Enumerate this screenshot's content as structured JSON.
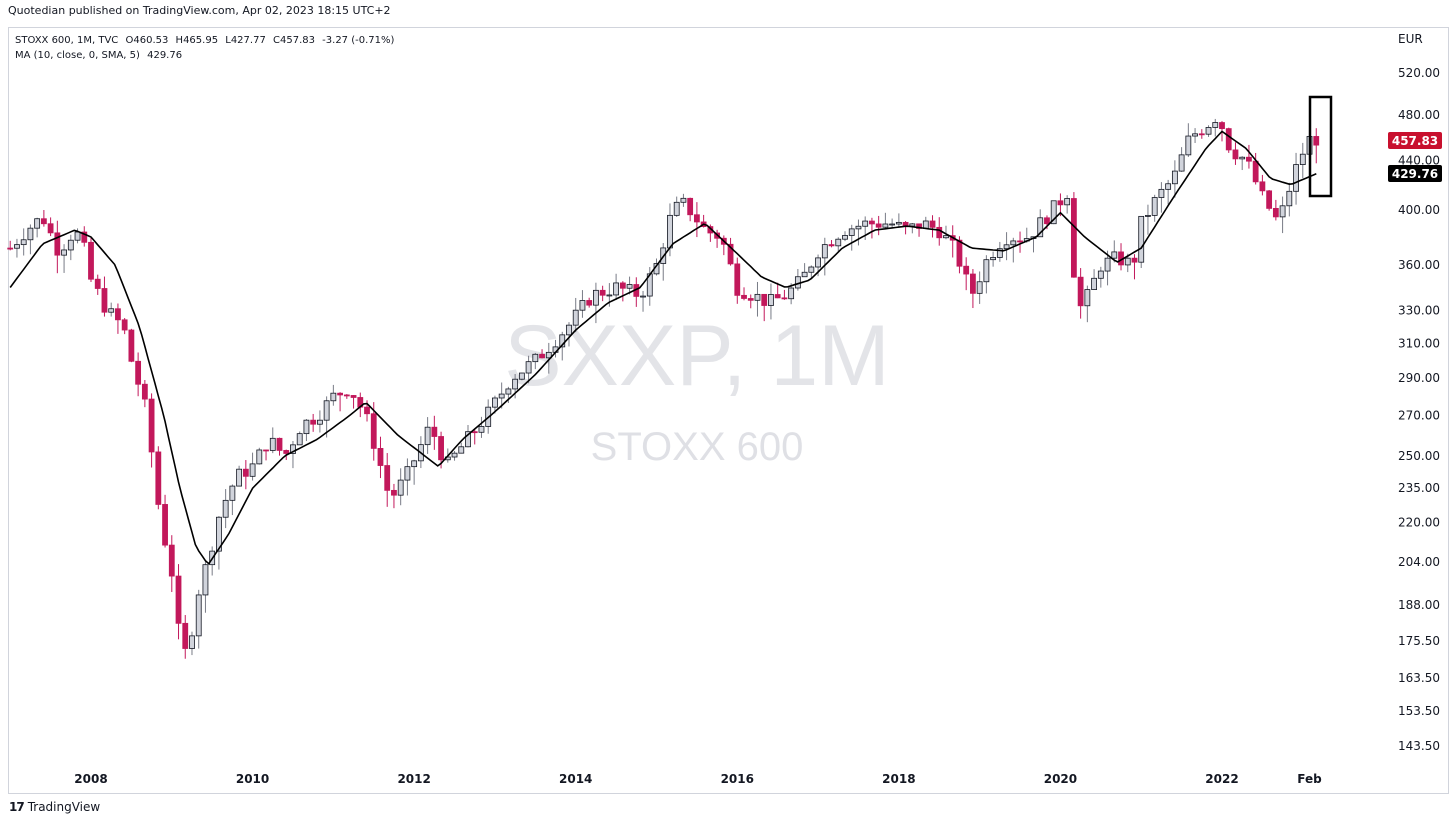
{
  "publisher_line": "Quotedian published on TradingView.com, Apr 02, 2023 18:15 UTC+2",
  "legend": {
    "symbol": "STOXX 600, 1M, TVC",
    "open": "O460.53",
    "high": "H465.95",
    "low": "L427.77",
    "close": "C457.83",
    "change": "-3.27 (-0.71%)",
    "ma_line": "MA (10, close, 0, SMA, 5)",
    "ma_value": "429.76"
  },
  "watermark": {
    "ticker": "SXXP, 1M",
    "name": "STOXX 600"
  },
  "footer": {
    "logo_text": "TradingView"
  },
  "colors": {
    "up_body": "#d1d4dc",
    "down_body": "#c2185b",
    "wick_up": "#787b86",
    "wick_down": "#c2185b",
    "ma_line": "#000000",
    "price_badge": "#c8102e",
    "ma_badge": "#000000"
  },
  "chart_data": {
    "type": "candlestick",
    "timeframe": "1M",
    "currency_label": "EUR",
    "scale": "log",
    "y_ticks": [
      "520.00",
      "480.00",
      "440.00",
      "400.00",
      "360.00",
      "330.00",
      "310.00",
      "290.00",
      "270.00",
      "250.00",
      "235.00",
      "220.00",
      "204.00",
      "188.00",
      "175.50",
      "163.50",
      "153.50",
      "143.50"
    ],
    "x_ticks": [
      {
        "label": "2008",
        "t": 2008.0
      },
      {
        "label": "2010",
        "t": 2010.0
      },
      {
        "label": "2012",
        "t": 2012.0
      },
      {
        "label": "2014",
        "t": 2014.0
      },
      {
        "label": "2016",
        "t": 2016.0
      },
      {
        "label": "2018",
        "t": 2018.0
      },
      {
        "label": "2020",
        "t": 2020.0
      },
      {
        "label": "2022",
        "t": 2022.0
      },
      {
        "label": "Feb",
        "t": 2023.083
      }
    ],
    "last_price": "457.83",
    "ma_last": "429.76",
    "close_anchors": [
      [
        2007.0,
        372
      ],
      [
        2007.2,
        385
      ],
      [
        2007.4,
        395
      ],
      [
        2007.6,
        370
      ],
      [
        2007.8,
        385
      ],
      [
        2007.9,
        375
      ],
      [
        2008.0,
        350
      ],
      [
        2008.2,
        330
      ],
      [
        2008.4,
        320
      ],
      [
        2008.5,
        300
      ],
      [
        2008.6,
        285
      ],
      [
        2008.7,
        270
      ],
      [
        2008.8,
        235
      ],
      [
        2008.9,
        215
      ],
      [
        2009.0,
        200
      ],
      [
        2009.1,
        175
      ],
      [
        2009.2,
        170
      ],
      [
        2009.3,
        190
      ],
      [
        2009.45,
        205
      ],
      [
        2009.6,
        225
      ],
      [
        2009.8,
        240
      ],
      [
        2010.0,
        245
      ],
      [
        2010.2,
        258
      ],
      [
        2010.4,
        250
      ],
      [
        2010.6,
        265
      ],
      [
        2010.8,
        270
      ],
      [
        2011.0,
        280
      ],
      [
        2011.2,
        285
      ],
      [
        2011.4,
        270
      ],
      [
        2011.55,
        250
      ],
      [
        2011.7,
        230
      ],
      [
        2011.9,
        240
      ],
      [
        2012.2,
        265
      ],
      [
        2012.4,
        245
      ],
      [
        2012.6,
        255
      ],
      [
        2012.9,
        270
      ],
      [
        2013.2,
        290
      ],
      [
        2013.5,
        300
      ],
      [
        2013.9,
        320
      ],
      [
        2014.2,
        340
      ],
      [
        2014.5,
        345
      ],
      [
        2014.8,
        340
      ],
      [
        2015.0,
        360
      ],
      [
        2015.2,
        400
      ],
      [
        2015.35,
        405
      ],
      [
        2015.6,
        385
      ],
      [
        2015.8,
        380
      ],
      [
        2016.0,
        345
      ],
      [
        2016.2,
        340
      ],
      [
        2016.4,
        335
      ],
      [
        2016.6,
        340
      ],
      [
        2016.8,
        350
      ],
      [
        2017.0,
        370
      ],
      [
        2017.3,
        385
      ],
      [
        2017.6,
        390
      ],
      [
        2017.9,
        390
      ],
      [
        2018.1,
        385
      ],
      [
        2018.3,
        390
      ],
      [
        2018.5,
        385
      ],
      [
        2018.7,
        370
      ],
      [
        2018.9,
        340
      ],
      [
        2019.1,
        365
      ],
      [
        2019.3,
        380
      ],
      [
        2019.6,
        380
      ],
      [
        2019.9,
        400
      ],
      [
        2020.1,
        415
      ],
      [
        2020.2,
        330
      ],
      [
        2020.3,
        335
      ],
      [
        2020.5,
        360
      ],
      [
        2020.7,
        365
      ],
      [
        2020.9,
        360
      ],
      [
        2021.0,
        390
      ],
      [
        2021.2,
        410
      ],
      [
        2021.4,
        425
      ],
      [
        2021.6,
        460
      ],
      [
        2021.8,
        470
      ],
      [
        2021.95,
        480
      ],
      [
        2022.1,
        450
      ],
      [
        2022.3,
        440
      ],
      [
        2022.5,
        410
      ],
      [
        2022.7,
        390
      ],
      [
        2022.8,
        410
      ],
      [
        2022.95,
        440
      ],
      [
        2023.1,
        460
      ],
      [
        2023.2,
        457.83
      ]
    ],
    "ma_anchors": [
      [
        2007.0,
        345
      ],
      [
        2007.4,
        375
      ],
      [
        2007.8,
        385
      ],
      [
        2008.0,
        380
      ],
      [
        2008.3,
        360
      ],
      [
        2008.6,
        320
      ],
      [
        2008.9,
        270
      ],
      [
        2009.1,
        235
      ],
      [
        2009.3,
        210
      ],
      [
        2009.45,
        203
      ],
      [
        2009.7,
        215
      ],
      [
        2010.0,
        235
      ],
      [
        2010.4,
        250
      ],
      [
        2010.8,
        258
      ],
      [
        2011.2,
        270
      ],
      [
        2011.4,
        277
      ],
      [
        2011.8,
        260
      ],
      [
        2012.3,
        245
      ],
      [
        2012.6,
        258
      ],
      [
        2013.0,
        272
      ],
      [
        2013.5,
        292
      ],
      [
        2014.0,
        318
      ],
      [
        2014.4,
        335
      ],
      [
        2014.8,
        345
      ],
      [
        2015.2,
        375
      ],
      [
        2015.6,
        390
      ],
      [
        2016.0,
        368
      ],
      [
        2016.3,
        352
      ],
      [
        2016.6,
        345
      ],
      [
        2016.9,
        350
      ],
      [
        2017.3,
        372
      ],
      [
        2017.7,
        385
      ],
      [
        2018.1,
        388
      ],
      [
        2018.5,
        385
      ],
      [
        2018.9,
        372
      ],
      [
        2019.3,
        370
      ],
      [
        2019.7,
        380
      ],
      [
        2020.0,
        398
      ],
      [
        2020.3,
        380
      ],
      [
        2020.7,
        362
      ],
      [
        2021.0,
        372
      ],
      [
        2021.4,
        410
      ],
      [
        2021.8,
        450
      ],
      [
        2022.0,
        465
      ],
      [
        2022.3,
        450
      ],
      [
        2022.6,
        425
      ],
      [
        2022.85,
        420
      ],
      [
        2023.2,
        429.76
      ]
    ]
  }
}
